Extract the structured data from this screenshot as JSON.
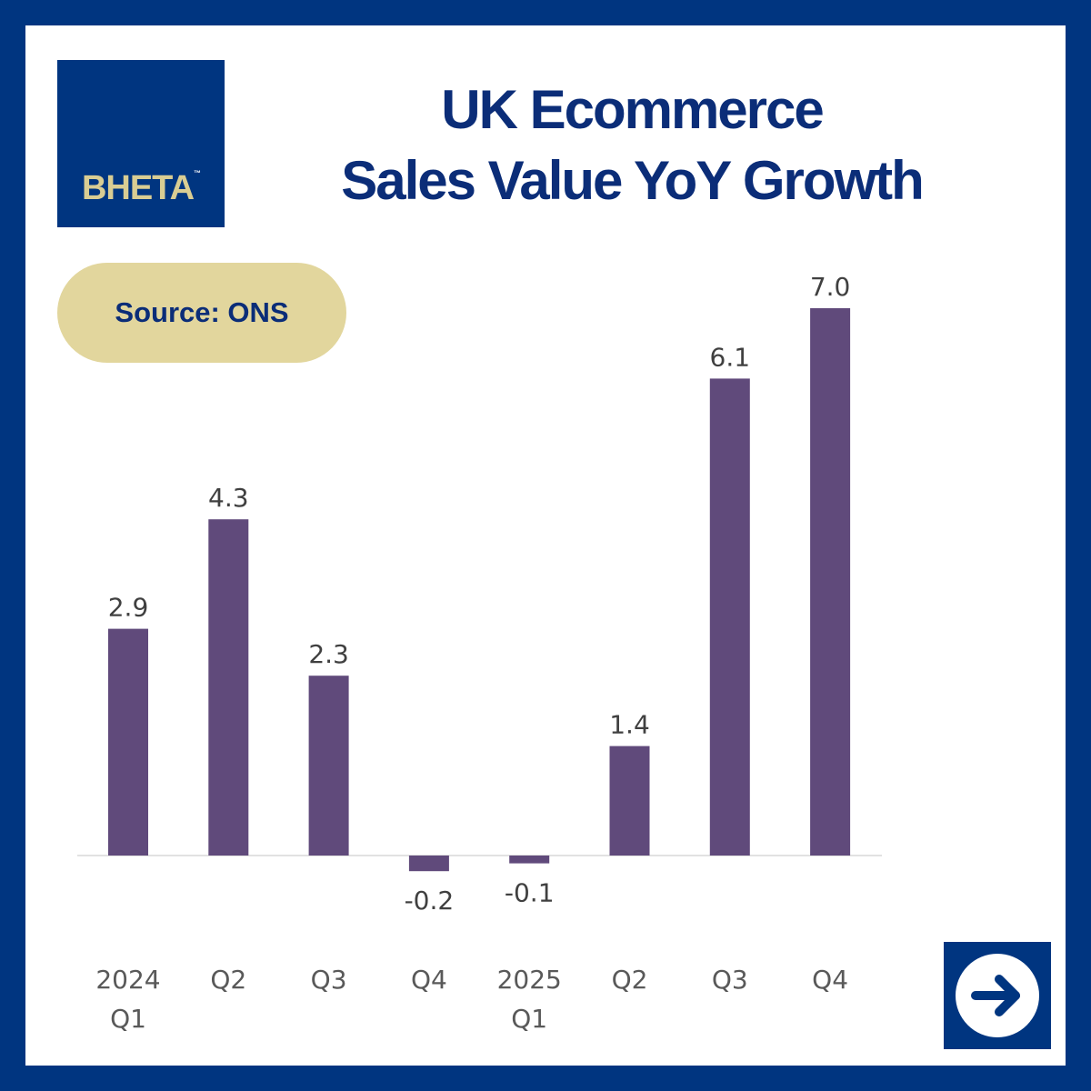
{
  "logo": {
    "text": "BHETA",
    "tm": "™"
  },
  "title": {
    "line1": "UK Ecommerce",
    "line2": "Sales Value YoY Growth"
  },
  "source": {
    "label": "Source: ONS"
  },
  "colors": {
    "frame": "#003580",
    "bar": "#604a7b",
    "accent": "#e2d69d",
    "title": "#0b2d78"
  },
  "icons": {
    "next": "arrow-right-icon"
  },
  "chart_data": {
    "type": "bar",
    "title": "UK Ecommerce Sales Value YoY Growth",
    "categories": [
      [
        "2024",
        "Q1"
      ],
      [
        "Q2"
      ],
      [
        "Q3"
      ],
      [
        "Q4"
      ],
      [
        "2025",
        "Q1"
      ],
      [
        "Q2"
      ],
      [
        "Q3"
      ],
      [
        "Q4"
      ]
    ],
    "values": [
      2.9,
      4.3,
      2.3,
      -0.2,
      -0.1,
      1.4,
      6.1,
      7.0
    ],
    "data_labels": [
      "2.9",
      "4.3",
      "2.3",
      "-0.2",
      "-0.1",
      "1.4",
      "6.1",
      "7.0"
    ],
    "ylim": [
      -0.2,
      7.0
    ],
    "grid": false,
    "legend": "none"
  }
}
